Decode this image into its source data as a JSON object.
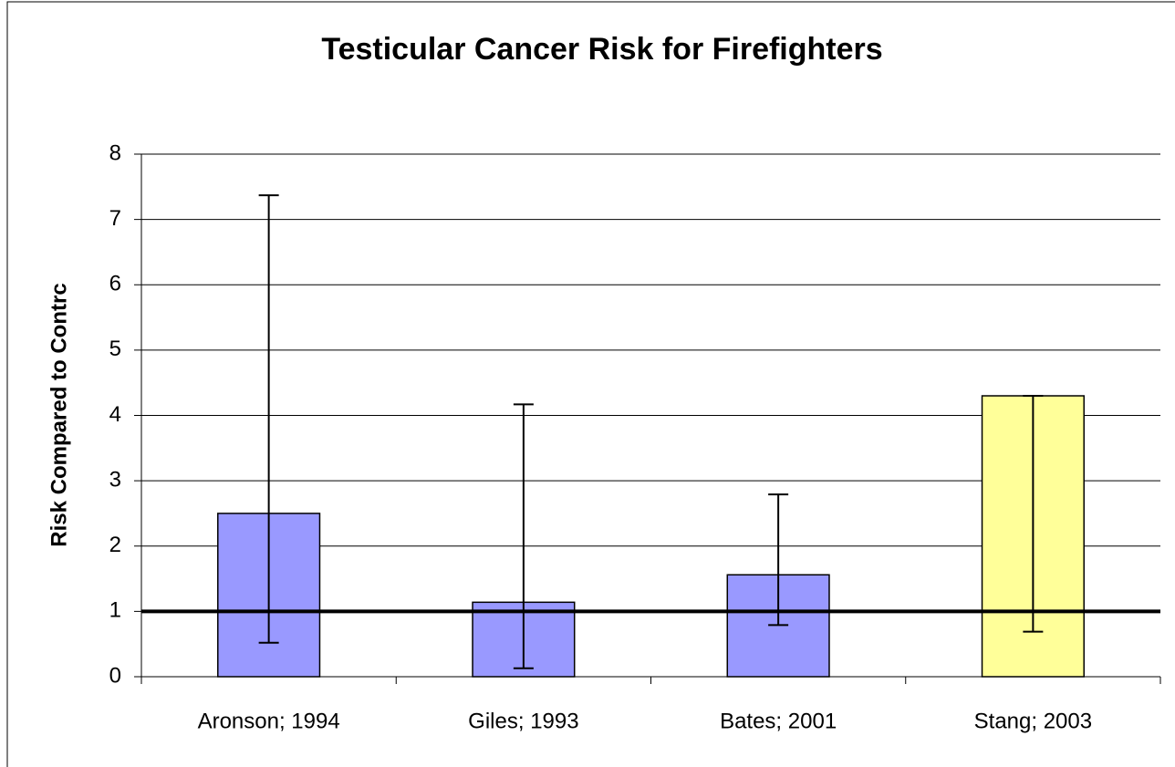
{
  "chart_data": {
    "type": "bar",
    "title": "Testicular Cancer Risk for Firefighters",
    "y_label": "Risk Compared to Contrc",
    "categories": [
      "Aronson; 1994",
      "Giles; 1993",
      "Bates; 2001",
      "Stang; 2003"
    ],
    "values": [
      2.5,
      1.14,
      1.56,
      4.3
    ],
    "error_low": [
      0.52,
      0.13,
      0.79,
      0.69
    ],
    "error_high": [
      7.37,
      4.17,
      2.79,
      4.3
    ],
    "colors": [
      "#9999ff",
      "#9999ff",
      "#9999ff",
      "#ffff99"
    ],
    "reference_line": 1,
    "ylim": [
      0,
      8
    ],
    "yticks": [
      0,
      1,
      2,
      3,
      4,
      5,
      6,
      7,
      8
    ],
    "grid": true
  }
}
